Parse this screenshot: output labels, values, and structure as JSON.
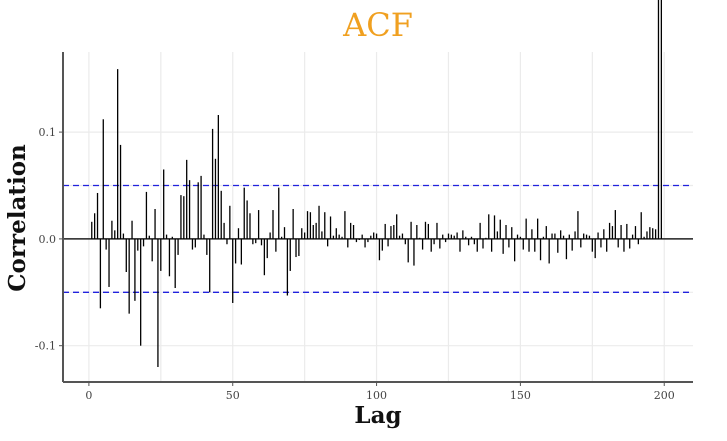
{
  "chart_data": {
    "type": "bar",
    "title": "ACF",
    "xlabel": "Lag",
    "ylabel": "Correlation",
    "xlim": [
      -9,
      210
    ],
    "ylim": [
      -0.134,
      0.175
    ],
    "x_ticks": [
      0,
      50,
      100,
      150,
      200
    ],
    "x_tick_labels": [
      "0",
      "50",
      "100",
      "150",
      "200"
    ],
    "y_ticks": [
      -0.1,
      0.0,
      0.1
    ],
    "y_tick_labels": [
      "-0.1",
      "0.0",
      "0.1"
    ],
    "confidence_bounds": [
      -0.05,
      0.05
    ],
    "grid": true,
    "lags": [
      1,
      2,
      3,
      4,
      5,
      6,
      7,
      8,
      9,
      10,
      11,
      12,
      13,
      14,
      15,
      16,
      17,
      18,
      19,
      20,
      21,
      22,
      23,
      24,
      25,
      26,
      27,
      28,
      29,
      30,
      31,
      32,
      33,
      34,
      35,
      36,
      37,
      38,
      39,
      40,
      41,
      42,
      43,
      44,
      45,
      46,
      47,
      48,
      49,
      50,
      51,
      52,
      53,
      54,
      55,
      56,
      57,
      58,
      59,
      60,
      61,
      62,
      63,
      64,
      65,
      66,
      67,
      68,
      69,
      70,
      71,
      72,
      73,
      74,
      75,
      76,
      77,
      78,
      79,
      80,
      81,
      82,
      83,
      84,
      85,
      86,
      87,
      88,
      89,
      90,
      91,
      92,
      93,
      94,
      95,
      96,
      97,
      98,
      99,
      100,
      101,
      102,
      103,
      104,
      105,
      106,
      107,
      108,
      109,
      110,
      111,
      112,
      113,
      114,
      115,
      116,
      117,
      118,
      119,
      120,
      121,
      122,
      123,
      124,
      125,
      126,
      127,
      128,
      129,
      130,
      131,
      132,
      133,
      134,
      135,
      136,
      137,
      138,
      139,
      140,
      141,
      142,
      143,
      144,
      145,
      146,
      147,
      148,
      149,
      150,
      151,
      152,
      153,
      154,
      155,
      156,
      157,
      158,
      159,
      160,
      161,
      162,
      163,
      164,
      165,
      166,
      167,
      168,
      169,
      170,
      171,
      172,
      173,
      174,
      175,
      176,
      177,
      178,
      179,
      180,
      181,
      182,
      183,
      184,
      185,
      186,
      187,
      188,
      189,
      190,
      191,
      192,
      193,
      194,
      195,
      196,
      197,
      198,
      199
    ],
    "values": [
      0.016,
      0.024,
      0.043,
      -0.065,
      0.112,
      -0.01,
      -0.045,
      0.017,
      0.008,
      0.159,
      0.088,
      0.005,
      -0.031,
      -0.07,
      0.017,
      -0.058,
      -0.011,
      -0.1,
      -0.007,
      0.044,
      0.003,
      -0.021,
      0.028,
      -0.12,
      -0.03,
      0.065,
      0.004,
      -0.035,
      0.002,
      -0.046,
      -0.015,
      0.041,
      0.04,
      0.074,
      0.055,
      -0.01,
      -0.008,
      0.053,
      0.059,
      0.004,
      -0.015,
      -0.05,
      0.103,
      0.075,
      0.116,
      0.045,
      0.015,
      -0.005,
      0.031,
      -0.06,
      -0.023,
      0.01,
      -0.024,
      0.048,
      0.036,
      0.024,
      -0.005,
      -0.004,
      0.027,
      -0.006,
      -0.034,
      -0.018,
      0.006,
      0.027,
      -0.012,
      0.048,
      0.002,
      0.011,
      -0.053,
      -0.03,
      0.028,
      -0.017,
      -0.016,
      0.01,
      0.006,
      0.026,
      0.025,
      0.013,
      0.015,
      0.031,
      0.007,
      0.025,
      -0.007,
      0.021,
      0.003,
      0.01,
      0.004,
      0.002,
      0.026,
      -0.008,
      0.015,
      0.013,
      -0.003,
      -0.001,
      0.004,
      -0.008,
      -0.003,
      0.003,
      0.006,
      0.005,
      -0.02,
      -0.011,
      0.014,
      -0.007,
      0.012,
      0.013,
      0.023,
      0.003,
      0.005,
      -0.005,
      -0.022,
      0.016,
      -0.025,
      0.013,
      0.001,
      -0.01,
      0.016,
      0.014,
      -0.012,
      -0.005,
      0.015,
      -0.009,
      0.004,
      -0.003,
      0.005,
      0.004,
      0.003,
      0.006,
      -0.012,
      0.008,
      0.002,
      -0.006,
      0.002,
      -0.005,
      -0.012,
      0.015,
      -0.009,
      0.001,
      0.023,
      -0.012,
      0.022,
      0.007,
      0.018,
      -0.014,
      0.013,
      -0.008,
      0.011,
      -0.021,
      0.004,
      0.002,
      -0.01,
      0.019,
      -0.012,
      0.009,
      -0.012,
      0.019,
      -0.02,
      0.002,
      0.012,
      -0.023,
      0.005,
      0.005,
      -0.013,
      0.008,
      0.003,
      -0.019,
      0.004,
      -0.011,
      0.007,
      0.026,
      -0.008,
      0.005,
      0.004,
      0.003,
      -0.012,
      -0.018,
      0.006,
      -0.008,
      0.009,
      -0.012,
      0.015,
      0.012,
      0.027,
      -0.008,
      0.013,
      -0.012,
      0.014,
      -0.009,
      0.004,
      0.012,
      -0.005,
      0.025,
      0.002,
      0.007,
      0.011,
      0.01,
      0.009
    ]
  }
}
